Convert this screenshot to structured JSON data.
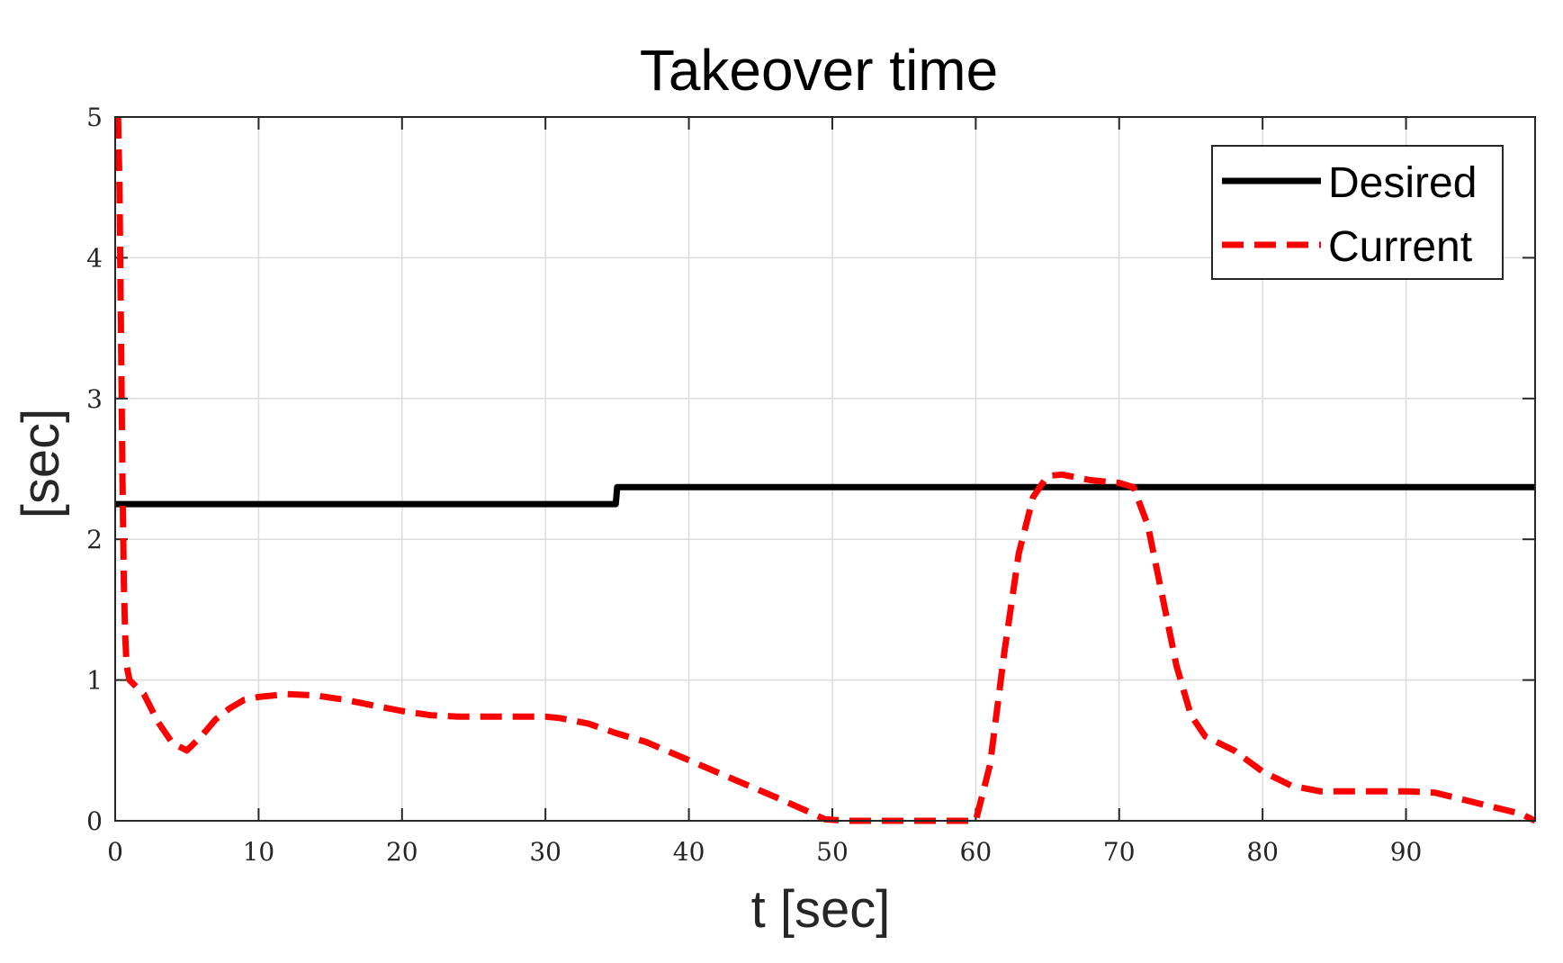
{
  "chart_data": {
    "type": "line",
    "title": "Takeover time",
    "xlabel": "t [sec]",
    "ylabel": "[sec]",
    "xlim": [
      0,
      99
    ],
    "ylim": [
      0,
      5
    ],
    "xticks": [
      0,
      10,
      20,
      30,
      40,
      50,
      60,
      70,
      80,
      90
    ],
    "yticks": [
      0,
      1,
      2,
      3,
      4,
      5
    ],
    "xtick_labels": [
      "0",
      "10",
      "20",
      "30",
      "40",
      "50",
      "60",
      "70",
      "80",
      "90"
    ],
    "ytick_labels": [
      "0",
      "1",
      "2",
      "3",
      "4",
      "5"
    ],
    "grid": true,
    "legend_position": "top-right",
    "series": [
      {
        "name": "Desired",
        "color": "#000000",
        "style": "solid",
        "x": [
          0,
          34.9,
          35,
          99
        ],
        "y": [
          2.25,
          2.25,
          2.37,
          2.37
        ]
      },
      {
        "name": "Current",
        "color": "#ff0000",
        "style": "dashed",
        "x": [
          0.2,
          0.3,
          0.4,
          0.5,
          0.6,
          0.7,
          0.8,
          1,
          2,
          3,
          4,
          5,
          6,
          7,
          8,
          9,
          10,
          12,
          14,
          16,
          18,
          20,
          22,
          24,
          26,
          28,
          30,
          31,
          33,
          35,
          37,
          40,
          43,
          46,
          48,
          49.5,
          51,
          55,
          60,
          61,
          62,
          63,
          64,
          65,
          66,
          68,
          70,
          71,
          72,
          73,
          74,
          75,
          76,
          78,
          80,
          82,
          84,
          86,
          88,
          90,
          92,
          94,
          96,
          98,
          99
        ],
        "y": [
          5.0,
          4.5,
          3.5,
          2.5,
          1.7,
          1.3,
          1.1,
          1.0,
          0.9,
          0.7,
          0.55,
          0.5,
          0.6,
          0.72,
          0.8,
          0.86,
          0.88,
          0.9,
          0.89,
          0.86,
          0.82,
          0.78,
          0.75,
          0.74,
          0.74,
          0.74,
          0.74,
          0.73,
          0.69,
          0.62,
          0.56,
          0.43,
          0.3,
          0.17,
          0.08,
          0.01,
          0.0,
          0.0,
          0.0,
          0.4,
          1.2,
          1.9,
          2.3,
          2.45,
          2.46,
          2.42,
          2.4,
          2.37,
          2.1,
          1.6,
          1.1,
          0.75,
          0.6,
          0.5,
          0.35,
          0.25,
          0.21,
          0.21,
          0.21,
          0.21,
          0.2,
          0.15,
          0.1,
          0.05,
          0.0
        ]
      }
    ]
  }
}
